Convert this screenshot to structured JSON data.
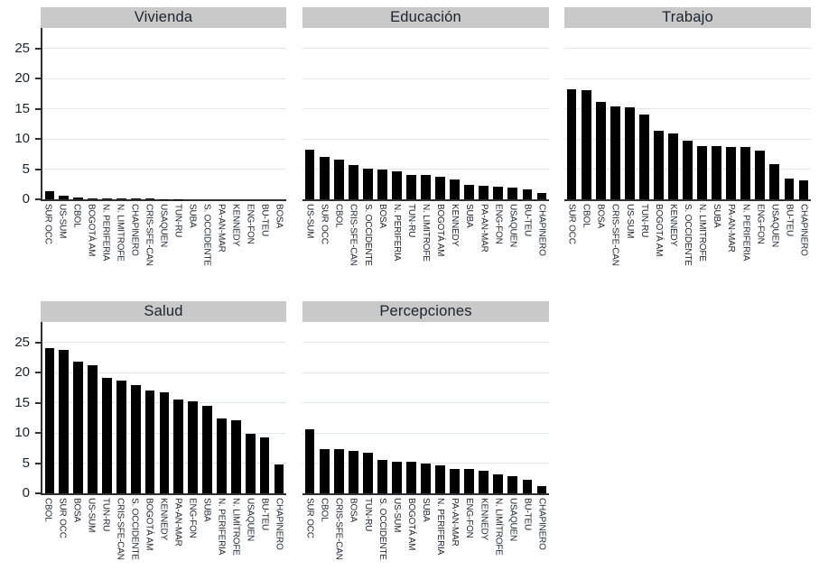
{
  "page": {
    "background": "#ffffff"
  },
  "palette": {
    "title_band_bg": "#c9c9c9",
    "text": "#1b2330",
    "gridline": "#e2e8ea",
    "axis": "#2f2f2f",
    "bar": "#000000"
  },
  "chart_data": [
    {
      "type": "bar",
      "title": "Vivienda",
      "categories": [
        "SUR OCC",
        "US-SUM",
        "CBOL",
        "BOGOTÁ AM",
        "N. PERIFERIA",
        "N. LIMITROFE",
        "CHAPINERO",
        "CRIS-SFE-CAN",
        "USAQUEN",
        "TUN-RU",
        "SUBA",
        "S. OCCIDENTE",
        "PA-AN-MAR",
        "KENNEDY",
        "ENG-FON",
        "BU-TEU",
        "BOSA"
      ],
      "values": [
        1.4,
        0.6,
        0.25,
        0.2,
        0.2,
        0.2,
        0.2,
        0.2,
        0.05,
        0.05,
        0,
        0,
        0,
        0,
        0,
        0,
        0
      ],
      "xlabel": "",
      "ylabel": "",
      "ylim": [
        0,
        28.4
      ],
      "yticks": [
        0,
        5,
        10,
        15,
        20,
        25
      ],
      "y_axis_labels": true,
      "grid": true
    },
    {
      "type": "bar",
      "title": "Educación",
      "categories": [
        "US-SUM",
        "SUR OCC",
        "CBOL",
        "CRIS-SFE-CAN",
        "S. OCCIDENTE",
        "BOSA",
        "N. PERIFERIA",
        "TUN-RU",
        "N. LIMITROFE",
        "BOGOTÁ AM",
        "KENNEDY",
        "SUBA",
        "PA-AN-MAR",
        "ENG-FON",
        "USAQUEN",
        "BU-TEU",
        "CHAPINERO"
      ],
      "values": [
        8.2,
        7.1,
        6.6,
        5.7,
        5.1,
        4.9,
        4.7,
        4.1,
        4.1,
        3.7,
        3.3,
        2.4,
        2.2,
        2.1,
        1.9,
        1.7,
        1.1
      ],
      "xlabel": "",
      "ylabel": "",
      "ylim": [
        0,
        28.4
      ],
      "yticks": [
        0,
        5,
        10,
        15,
        20,
        25
      ],
      "y_axis_labels": false,
      "grid": true
    },
    {
      "type": "bar",
      "title": "Trabajo",
      "categories": [
        "SUR OCC",
        "CBOL",
        "BOSA",
        "CRIS-SFE-CAN",
        "US-SUM",
        "TUN-RU",
        "BOGOTÁ AM",
        "KENNEDY",
        "S. OCCIDENTE",
        "N. LIMITROFE",
        "SUBA",
        "PA-AN-MAR",
        "N. PERIFERIA",
        "ENG-FON",
        "USAQUEN",
        "BU-TEU",
        "CHAPINERO"
      ],
      "values": [
        18.3,
        18.1,
        16.1,
        15.4,
        15.3,
        14.0,
        11.3,
        10.9,
        9.7,
        8.8,
        8.8,
        8.6,
        8.6,
        8.1,
        5.8,
        3.4,
        3.2
      ],
      "xlabel": "",
      "ylabel": "",
      "ylim": [
        0,
        28.4
      ],
      "yticks": [
        0,
        5,
        10,
        15,
        20,
        25
      ],
      "y_axis_labels": false,
      "grid": true
    },
    {
      "type": "bar",
      "title": "Salud",
      "categories": [
        "CBOL",
        "SUR OCC",
        "BOSA",
        "US-SUM",
        "TUN-RU",
        "CRIS-SFE-CAN",
        "S. OCCIDENTE",
        "BOGOTÁ AM",
        "KENNEDY",
        "PA-AN-MAR",
        "ENG-FON",
        "SUBA",
        "N. PERIFERIA",
        "N. LIMÍTROFE",
        "USAQUEN",
        "BU-TEU",
        "CHAPINERO"
      ],
      "values": [
        24.0,
        23.8,
        21.9,
        21.2,
        19.1,
        18.7,
        18.0,
        17.0,
        16.8,
        15.5,
        15.3,
        14.5,
        12.4,
        12.1,
        9.8,
        9.2,
        4.8
      ],
      "xlabel": "",
      "ylabel": "",
      "ylim": [
        0,
        28.4
      ],
      "yticks": [
        0,
        5,
        10,
        15,
        20,
        25
      ],
      "y_axis_labels": true,
      "grid": true
    },
    {
      "type": "bar",
      "title": "Percepciones",
      "categories": [
        "SUR OCC",
        "CBOL",
        "CRIS-SFE-CAN",
        "BOSA",
        "TUN-RU",
        "S. OCCIDENTE",
        "US-SUM",
        "BOGOTÁ AM",
        "SUBA",
        "N. PERIFERIA",
        "PA-AN-MAR",
        "ENG-FON",
        "KENNEDY",
        "N. LIMÍTROFE",
        "USAQUEN",
        "BU-TEU",
        "CHAPINERO"
      ],
      "values": [
        10.6,
        7.4,
        7.4,
        7.1,
        6.7,
        5.5,
        5.3,
        5.3,
        4.9,
        4.7,
        4.1,
        4.1,
        3.8,
        3.1,
        2.9,
        2.2,
        1.2
      ],
      "xlabel": "",
      "ylabel": "",
      "ylim": [
        0,
        28.4
      ],
      "yticks": [
        0,
        5,
        10,
        15,
        20,
        25
      ],
      "y_axis_labels": false,
      "grid": true
    }
  ]
}
